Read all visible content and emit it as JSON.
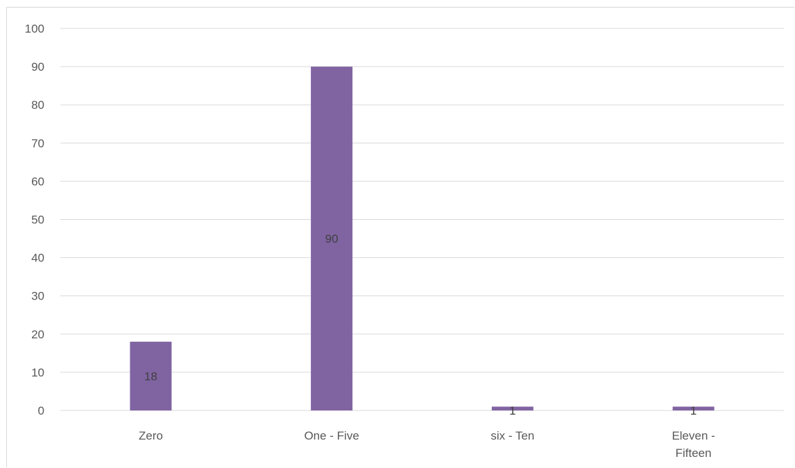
{
  "chart_data": {
    "type": "bar",
    "categories": [
      [
        "Zero"
      ],
      [
        "One - Five"
      ],
      [
        "six - Ten"
      ],
      [
        "Eleven -",
        "Fifteen"
      ]
    ],
    "values": [
      18,
      90,
      1,
      1
    ],
    "data_labels": [
      "18",
      "90",
      "1",
      "1"
    ],
    "title": "",
    "xlabel": "",
    "ylabel": "",
    "ylim": [
      0,
      100
    ],
    "yticks": [
      "0",
      "10",
      "20",
      "30",
      "40",
      "50",
      "60",
      "70",
      "80",
      "90",
      "100"
    ],
    "grid": true,
    "bar_color": "#8064a2",
    "grid_color": "#d9d9d9"
  }
}
